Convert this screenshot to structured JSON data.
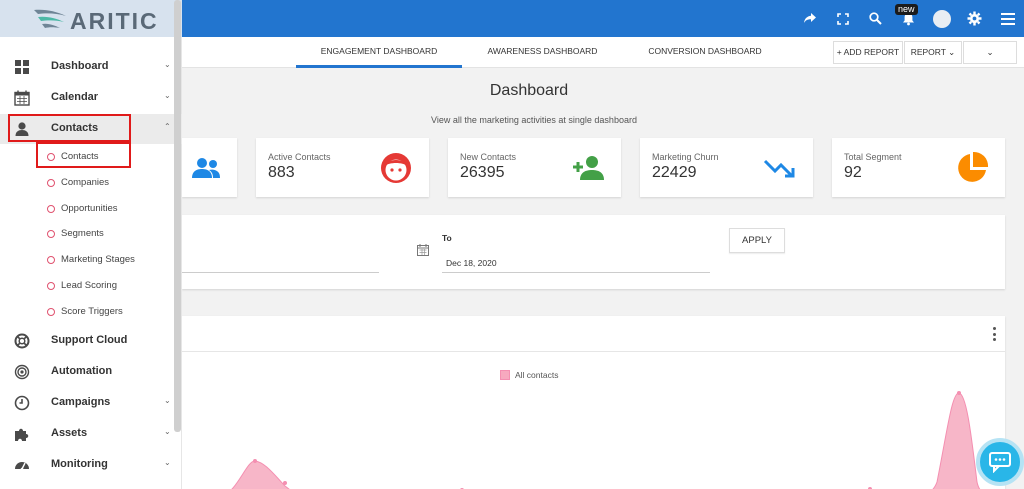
{
  "app": {
    "logo_text": "ARITIC"
  },
  "topbar": {
    "icons": [
      "share-icon",
      "fullscreen-icon",
      "search-icon",
      "bell-icon",
      "avatar",
      "gear-icon",
      "menu-icon"
    ],
    "notification_badge": "new"
  },
  "tabs": [
    {
      "label": "ENGAGEMENT DASHBOARD",
      "active": true
    },
    {
      "label": "AWARENESS DASHBOARD",
      "active": false
    },
    {
      "label": "CONVERSION DASHBOARD",
      "active": false
    }
  ],
  "toolbar": {
    "add_report": "+ ADD REPORT",
    "report": "REPORT ⌄",
    "more": "⌄"
  },
  "main": {
    "title": "Dashboard",
    "subtitle": "View all the marketing activities at single dashboard"
  },
  "cards": [
    {
      "label": "Active Contacts",
      "value": "883",
      "icon": "face-icon",
      "color": "#e53935"
    },
    {
      "label": "New Contacts",
      "value": "26395",
      "icon": "add-person-icon",
      "color": "#43a047"
    },
    {
      "label": "Marketing Churn",
      "value": "22429",
      "icon": "trending-down-icon",
      "color": "#1e88e5"
    },
    {
      "label": "Total Segment",
      "value": "92",
      "icon": "pie-chart-icon",
      "color": "#fb8c00"
    }
  ],
  "first_card_icon": {
    "icon": "people-icon",
    "color": "#1e88e5"
  },
  "filter": {
    "to_label": "To",
    "to_value": "Dec 18, 2020",
    "apply_label": "APPLY"
  },
  "chart_data": {
    "type": "area",
    "series": [
      {
        "name": "All contacts",
        "color": "#f48fb1"
      }
    ]
  },
  "sidebar": {
    "items": [
      {
        "label": "Dashboard",
        "icon": "dashboard-icon",
        "chevron": "⌄"
      },
      {
        "label": "Calendar",
        "icon": "calendar-icon",
        "chevron": "⌄"
      },
      {
        "label": "Contacts",
        "icon": "person-icon",
        "chevron": "⌃",
        "active": true
      },
      {
        "label": "Support Cloud",
        "icon": "lifebuoy-icon",
        "chevron": ""
      },
      {
        "label": "Automation",
        "icon": "target-icon",
        "chevron": ""
      },
      {
        "label": "Campaigns",
        "icon": "clock-icon",
        "chevron": "⌄"
      },
      {
        "label": "Assets",
        "icon": "puzzle-icon",
        "chevron": "⌄"
      },
      {
        "label": "Monitoring",
        "icon": "gauge-icon",
        "chevron": "⌄"
      }
    ],
    "sub_items": [
      "Contacts",
      "Companies",
      "Opportunities",
      "Segments",
      "Marketing Stages",
      "Lead Scoring",
      "Score Triggers"
    ]
  }
}
